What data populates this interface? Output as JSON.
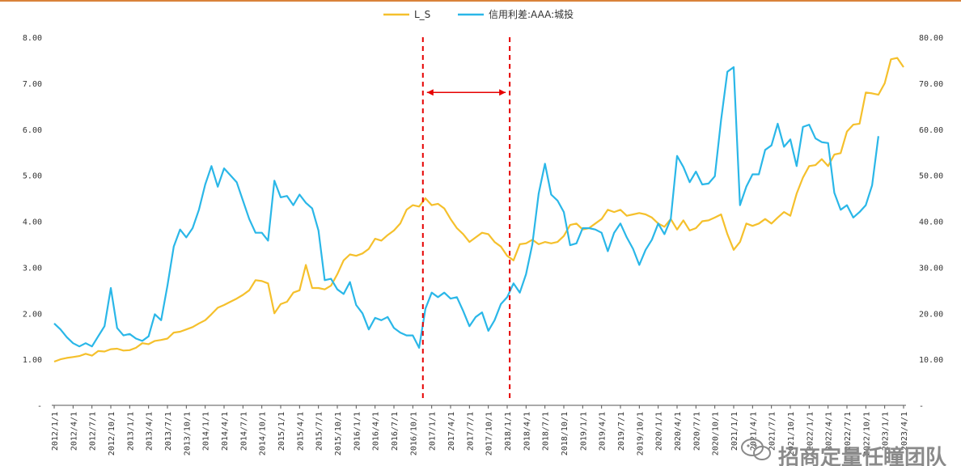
{
  "chart_data": {
    "type": "line",
    "title": "",
    "legend": {
      "placement": "top-center"
    },
    "y_left": {
      "ticks": [
        "-",
        "1.00",
        "2.00",
        "3.00",
        "4.00",
        "5.00",
        "6.00",
        "7.00",
        "8.00"
      ],
      "ylim": [
        0,
        8
      ]
    },
    "y_right": {
      "ticks": [
        "-",
        "10.00",
        "20.00",
        "30.00",
        "40.00",
        "50.00",
        "60.00",
        "70.00",
        "80.00"
      ],
      "ylim": [
        0,
        80
      ]
    },
    "x_tick_labels": [
      "2012/1/1",
      "2012/4/1",
      "2012/7/1",
      "2012/10/1",
      "2013/1/1",
      "2013/4/1",
      "2013/7/1",
      "2013/10/1",
      "2014/1/1",
      "2014/4/1",
      "2014/7/1",
      "2014/10/1",
      "2015/1/1",
      "2015/4/1",
      "2015/7/1",
      "2015/10/1",
      "2016/1/1",
      "2016/4/1",
      "2016/7/1",
      "2016/10/1",
      "2017/1/1",
      "2017/4/1",
      "2017/7/1",
      "2017/10/1",
      "2018/1/1",
      "2018/4/1",
      "2018/7/1",
      "2018/10/1",
      "2019/1/1",
      "2019/4/1",
      "2019/7/1",
      "2019/10/1",
      "2020/1/1",
      "2020/4/1",
      "2020/7/1",
      "2020/10/1",
      "2021/1/1",
      "2021/4/1",
      "2021/7/1",
      "2021/10/1",
      "2022/1/1",
      "2022/4/1",
      "2022/7/1",
      "2022/10/1",
      "2023/1/1",
      "2023/4/1"
    ],
    "series": [
      {
        "name": "L_S",
        "color": "#f5c02c",
        "axis": "left",
        "points": [
          [
            0,
            0.95
          ],
          [
            1,
            1.0
          ],
          [
            2,
            1.03
          ],
          [
            3,
            1.05
          ],
          [
            4,
            1.07
          ],
          [
            5,
            1.12
          ],
          [
            6,
            1.08
          ],
          [
            7,
            1.18
          ],
          [
            8,
            1.17
          ],
          [
            9,
            1.22
          ],
          [
            10,
            1.23
          ],
          [
            11,
            1.19
          ],
          [
            12,
            1.2
          ],
          [
            13,
            1.25
          ],
          [
            14,
            1.35
          ],
          [
            15,
            1.33
          ],
          [
            16,
            1.4
          ],
          [
            17,
            1.42
          ],
          [
            18,
            1.45
          ],
          [
            19,
            1.58
          ],
          [
            20,
            1.6
          ],
          [
            21,
            1.65
          ],
          [
            22,
            1.7
          ],
          [
            23,
            1.78
          ],
          [
            24,
            1.85
          ],
          [
            25,
            1.98
          ],
          [
            26,
            2.12
          ],
          [
            27,
            2.18
          ],
          [
            28,
            2.25
          ],
          [
            29,
            2.32
          ],
          [
            30,
            2.4
          ],
          [
            31,
            2.5
          ],
          [
            32,
            2.72
          ],
          [
            33,
            2.7
          ],
          [
            34,
            2.65
          ],
          [
            35,
            2.0
          ],
          [
            36,
            2.2
          ],
          [
            37,
            2.25
          ],
          [
            38,
            2.45
          ],
          [
            39,
            2.5
          ],
          [
            40,
            3.05
          ],
          [
            41,
            2.55
          ],
          [
            42,
            2.55
          ],
          [
            43,
            2.52
          ],
          [
            44,
            2.6
          ],
          [
            45,
            2.85
          ],
          [
            46,
            3.15
          ],
          [
            47,
            3.28
          ],
          [
            48,
            3.25
          ],
          [
            49,
            3.3
          ],
          [
            50,
            3.4
          ],
          [
            51,
            3.62
          ],
          [
            52,
            3.58
          ],
          [
            53,
            3.7
          ],
          [
            54,
            3.8
          ],
          [
            55,
            3.95
          ],
          [
            56,
            4.25
          ],
          [
            57,
            4.35
          ],
          [
            58,
            4.32
          ],
          [
            59,
            4.5
          ],
          [
            60,
            4.35
          ],
          [
            61,
            4.38
          ],
          [
            62,
            4.28
          ],
          [
            63,
            4.05
          ],
          [
            64,
            3.85
          ],
          [
            65,
            3.72
          ],
          [
            66,
            3.55
          ],
          [
            67,
            3.65
          ],
          [
            68,
            3.75
          ],
          [
            69,
            3.72
          ],
          [
            70,
            3.55
          ],
          [
            71,
            3.45
          ],
          [
            72,
            3.25
          ],
          [
            73,
            3.15
          ],
          [
            74,
            3.5
          ],
          [
            75,
            3.52
          ],
          [
            76,
            3.6
          ],
          [
            77,
            3.5
          ],
          [
            78,
            3.55
          ],
          [
            79,
            3.52
          ],
          [
            80,
            3.55
          ],
          [
            81,
            3.68
          ],
          [
            82,
            3.92
          ],
          [
            83,
            3.95
          ],
          [
            84,
            3.82
          ],
          [
            85,
            3.85
          ],
          [
            86,
            3.95
          ],
          [
            87,
            4.05
          ],
          [
            88,
            4.25
          ],
          [
            89,
            4.2
          ],
          [
            90,
            4.25
          ],
          [
            91,
            4.12
          ],
          [
            92,
            4.15
          ],
          [
            93,
            4.18
          ],
          [
            94,
            4.15
          ],
          [
            95,
            4.08
          ],
          [
            96,
            3.95
          ],
          [
            97,
            3.88
          ],
          [
            98,
            4.05
          ],
          [
            99,
            3.82
          ],
          [
            100,
            4.02
          ],
          [
            101,
            3.8
          ],
          [
            102,
            3.85
          ],
          [
            103,
            4.0
          ],
          [
            104,
            4.02
          ],
          [
            105,
            4.08
          ],
          [
            106,
            4.15
          ],
          [
            107,
            3.72
          ],
          [
            108,
            3.38
          ],
          [
            109,
            3.55
          ],
          [
            110,
            3.95
          ],
          [
            111,
            3.9
          ],
          [
            112,
            3.95
          ],
          [
            113,
            4.05
          ],
          [
            114,
            3.95
          ],
          [
            115,
            4.08
          ],
          [
            116,
            4.2
          ],
          [
            117,
            4.12
          ],
          [
            118,
            4.6
          ],
          [
            119,
            4.95
          ],
          [
            120,
            5.2
          ],
          [
            121,
            5.22
          ],
          [
            122,
            5.35
          ],
          [
            123,
            5.2
          ],
          [
            124,
            5.45
          ],
          [
            125,
            5.48
          ],
          [
            126,
            5.95
          ],
          [
            127,
            6.1
          ],
          [
            128,
            6.12
          ],
          [
            129,
            6.8
          ],
          [
            130,
            6.78
          ],
          [
            131,
            6.75
          ],
          [
            132,
            7.0
          ],
          [
            133,
            7.52
          ],
          [
            134,
            7.55
          ],
          [
            135,
            7.35
          ]
        ]
      },
      {
        "name": "信用利差:AAA:城投",
        "color": "#2ab7e8",
        "axis": "right",
        "points": [
          [
            0,
            17.8
          ],
          [
            1,
            16.5
          ],
          [
            2,
            14.8
          ],
          [
            3,
            13.5
          ],
          [
            4,
            12.8
          ],
          [
            5,
            13.5
          ],
          [
            6,
            12.8
          ],
          [
            7,
            15.0
          ],
          [
            8,
            17.2
          ],
          [
            9,
            25.5
          ],
          [
            10,
            16.8
          ],
          [
            11,
            15.2
          ],
          [
            12,
            15.5
          ],
          [
            13,
            14.5
          ],
          [
            14,
            14.0
          ],
          [
            15,
            15.0
          ],
          [
            16,
            19.8
          ],
          [
            17,
            18.5
          ],
          [
            18,
            26.0
          ],
          [
            19,
            34.5
          ],
          [
            20,
            38.2
          ],
          [
            21,
            36.5
          ],
          [
            22,
            38.5
          ],
          [
            23,
            42.5
          ],
          [
            24,
            48.0
          ],
          [
            25,
            52.0
          ],
          [
            26,
            47.5
          ],
          [
            27,
            51.5
          ],
          [
            28,
            50.0
          ],
          [
            29,
            48.5
          ],
          [
            30,
            44.5
          ],
          [
            31,
            40.5
          ],
          [
            32,
            37.5
          ],
          [
            33,
            37.5
          ],
          [
            34,
            35.8
          ],
          [
            35,
            48.8
          ],
          [
            36,
            45.2
          ],
          [
            37,
            45.5
          ],
          [
            38,
            43.5
          ],
          [
            39,
            45.8
          ],
          [
            40,
            44.0
          ],
          [
            41,
            42.8
          ],
          [
            42,
            38.0
          ],
          [
            43,
            27.2
          ],
          [
            44,
            27.5
          ],
          [
            45,
            25.2
          ],
          [
            46,
            24.2
          ],
          [
            47,
            26.8
          ],
          [
            48,
            21.8
          ],
          [
            49,
            20.0
          ],
          [
            50,
            16.5
          ],
          [
            51,
            19.0
          ],
          [
            52,
            18.5
          ],
          [
            53,
            19.2
          ],
          [
            54,
            16.8
          ],
          [
            55,
            15.8
          ],
          [
            56,
            15.2
          ],
          [
            57,
            15.2
          ],
          [
            58,
            12.5
          ],
          [
            59,
            21.0
          ],
          [
            60,
            24.5
          ],
          [
            61,
            23.5
          ],
          [
            62,
            24.5
          ],
          [
            63,
            23.2
          ],
          [
            64,
            23.5
          ],
          [
            65,
            20.5
          ],
          [
            66,
            17.2
          ],
          [
            67,
            19.2
          ],
          [
            68,
            20.2
          ],
          [
            69,
            16.2
          ],
          [
            70,
            18.5
          ],
          [
            71,
            22.0
          ],
          [
            72,
            23.5
          ],
          [
            73,
            26.5
          ],
          [
            74,
            24.5
          ],
          [
            75,
            28.5
          ],
          [
            76,
            35.0
          ],
          [
            77,
            46.0
          ],
          [
            78,
            52.5
          ],
          [
            79,
            45.8
          ],
          [
            80,
            44.5
          ],
          [
            81,
            42.0
          ],
          [
            82,
            34.8
          ],
          [
            83,
            35.2
          ],
          [
            84,
            38.5
          ],
          [
            85,
            38.5
          ],
          [
            86,
            38.2
          ],
          [
            87,
            37.5
          ],
          [
            88,
            33.5
          ],
          [
            89,
            37.5
          ],
          [
            90,
            39.5
          ],
          [
            91,
            36.5
          ],
          [
            92,
            34.0
          ],
          [
            93,
            30.5
          ],
          [
            94,
            33.8
          ],
          [
            95,
            36.0
          ],
          [
            96,
            39.5
          ],
          [
            97,
            37.2
          ],
          [
            98,
            40.5
          ],
          [
            99,
            54.2
          ],
          [
            100,
            51.8
          ],
          [
            101,
            48.5
          ],
          [
            102,
            50.8
          ],
          [
            103,
            48.0
          ],
          [
            104,
            48.2
          ],
          [
            105,
            49.8
          ],
          [
            106,
            62.0
          ],
          [
            107,
            72.5
          ],
          [
            108,
            73.5
          ],
          [
            109,
            43.5
          ],
          [
            110,
            47.5
          ],
          [
            111,
            50.2
          ],
          [
            112,
            50.2
          ],
          [
            113,
            55.5
          ],
          [
            114,
            56.5
          ],
          [
            115,
            61.2
          ],
          [
            116,
            56.2
          ],
          [
            117,
            57.8
          ],
          [
            118,
            52.0
          ],
          [
            119,
            60.5
          ],
          [
            120,
            61.0
          ],
          [
            121,
            58.0
          ],
          [
            122,
            57.2
          ],
          [
            123,
            57.0
          ],
          [
            124,
            46.2
          ],
          [
            125,
            42.5
          ],
          [
            126,
            43.5
          ],
          [
            127,
            40.8
          ],
          [
            128,
            42.0
          ],
          [
            129,
            43.5
          ],
          [
            130,
            47.8
          ],
          [
            131,
            58.5
          ]
        ]
      }
    ],
    "annotations": {
      "vertical_lines": [
        {
          "x": 58.6,
          "style": "dashed",
          "color": "#e60000"
        },
        {
          "x": 72.4,
          "style": "dashed",
          "color": "#e60000"
        }
      ],
      "double_arrow": {
        "from": 58.6,
        "to": 72.4,
        "y": 6.8,
        "color": "#e60000"
      }
    }
  },
  "watermark": {
    "text": "招商定量任瞳团队"
  }
}
